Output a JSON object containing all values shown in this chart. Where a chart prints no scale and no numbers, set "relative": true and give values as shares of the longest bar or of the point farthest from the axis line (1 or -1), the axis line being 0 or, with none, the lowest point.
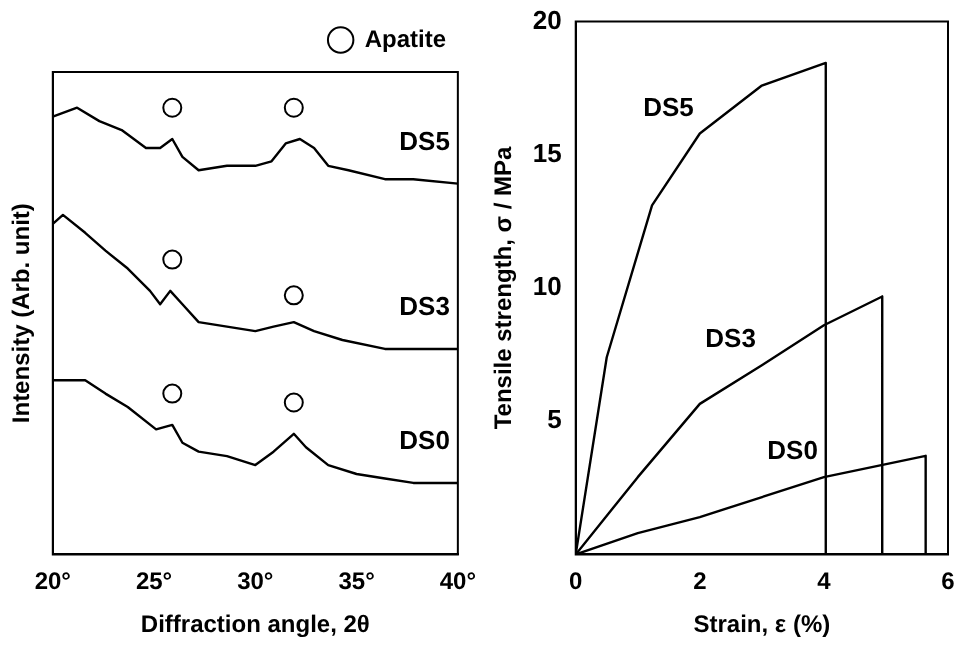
{
  "chart_data": [
    {
      "type": "line",
      "relative": true,
      "xlabel": "Diffraction angle, 2θ",
      "ylabel": "Intensity (Arb. unit)",
      "xlim": [
        20,
        40
      ],
      "xticks": [
        {
          "value": 20,
          "label": "20°"
        },
        {
          "value": 25,
          "label": "25°"
        },
        {
          "value": 30,
          "label": "30°"
        },
        {
          "value": 35,
          "label": "35°"
        },
        {
          "value": 40,
          "label": "40°"
        }
      ],
      "legend": "top right",
      "marker": "none",
      "series": [
        {
          "name": "DS5",
          "color": "#000000",
          "x": [
            20,
            21.2,
            22.3,
            23.4,
            24.6,
            25.3,
            25.9,
            26.4,
            27.2,
            28.6,
            30.0,
            30.8,
            31.5,
            32.2,
            32.9,
            33.6,
            34.6,
            36.4,
            37.8,
            40
          ],
          "values": [
            0.98,
            1.0,
            0.97,
            0.95,
            0.91,
            0.91,
            0.93,
            0.89,
            0.86,
            0.87,
            0.87,
            0.88,
            0.92,
            0.93,
            0.91,
            0.87,
            0.86,
            0.84,
            0.84,
            0.83
          ]
        },
        {
          "name": "DS3",
          "color": "#000000",
          "x": [
            20,
            20.5,
            21.6,
            22.6,
            23.7,
            24.8,
            25.3,
            25.8,
            26.4,
            27.2,
            28.6,
            30.0,
            30.9,
            31.9,
            32.9,
            34.3,
            36.4,
            37.8,
            40
          ],
          "values": [
            0.74,
            0.76,
            0.72,
            0.68,
            0.64,
            0.59,
            0.56,
            0.59,
            0.56,
            0.52,
            0.51,
            0.5,
            0.51,
            0.52,
            0.5,
            0.48,
            0.46,
            0.46,
            0.46
          ]
        },
        {
          "name": "DS0",
          "color": "#000000",
          "x": [
            20,
            21.6,
            22.6,
            23.7,
            25.1,
            25.9,
            26.4,
            27.2,
            28.6,
            30.0,
            30.9,
            31.9,
            32.5,
            33.6,
            35.0,
            36.4,
            37.8,
            40
          ],
          "values": [
            0.39,
            0.39,
            0.36,
            0.33,
            0.28,
            0.29,
            0.25,
            0.23,
            0.22,
            0.2,
            0.23,
            0.27,
            0.24,
            0.2,
            0.18,
            0.17,
            0.16,
            0.16
          ]
        },
        {
          "name": "Apatite",
          "type": "scatter",
          "marker": "circle",
          "color": "#000000",
          "x": [
            25.9,
            31.9,
            25.9,
            31.9,
            25.9,
            31.9
          ],
          "values": [
            1.0,
            1.0,
            0.66,
            0.58,
            0.36,
            0.34
          ]
        }
      ]
    },
    {
      "type": "line",
      "xlabel": "Strain, ε (%)",
      "ylabel": "Tensile strength, σ / MPa",
      "xlim": [
        0,
        6
      ],
      "xticks": [
        0,
        2,
        4,
        6
      ],
      "ylim": [
        0,
        20
      ],
      "yticks": [
        5,
        10,
        15,
        20
      ],
      "marker": "none",
      "series": [
        {
          "name": "DS5",
          "color": "#000000",
          "x": [
            0,
            0.5,
            1.23,
            2,
            3,
            4.03,
            4.03
          ],
          "values": [
            0,
            7.4,
            13.1,
            15.8,
            17.6,
            18.45,
            0
          ]
        },
        {
          "name": "DS3",
          "color": "#000000",
          "x": [
            0,
            1,
            2,
            3,
            4,
            4.94,
            4.94
          ],
          "values": [
            0,
            2.9,
            5.65,
            7.1,
            8.6,
            9.68,
            0
          ]
        },
        {
          "name": "DS0",
          "color": "#000000",
          "x": [
            0,
            1,
            2,
            4,
            5.64,
            5.64
          ],
          "values": [
            0,
            0.8,
            1.4,
            2.9,
            3.7,
            0
          ]
        }
      ]
    }
  ]
}
